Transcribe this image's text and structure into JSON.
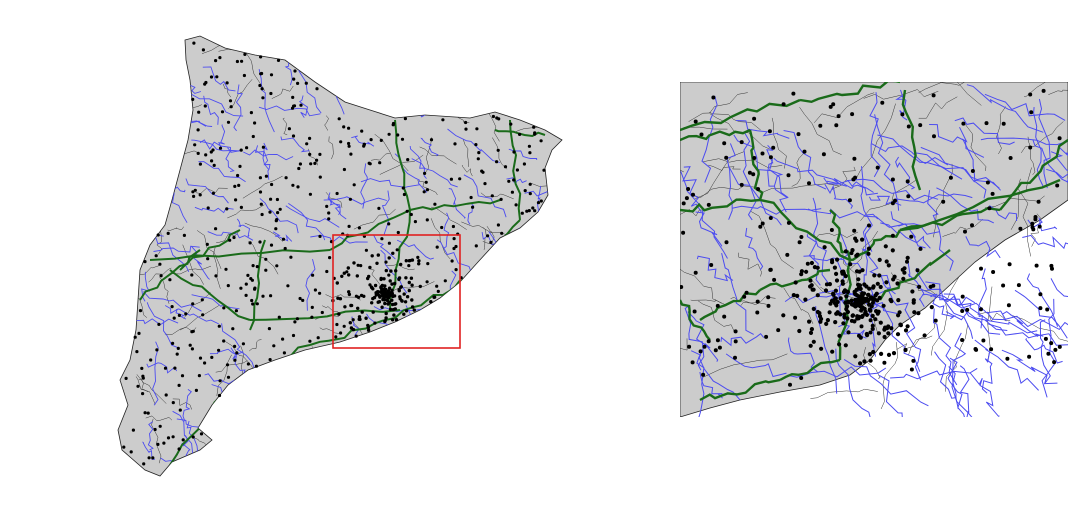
{
  "figure": {
    "panels": [
      {
        "id": "overview",
        "role": "full region map"
      },
      {
        "id": "inset",
        "role": "zoomed detail of highlighted area"
      }
    ],
    "colors": {
      "background": "#ffffff",
      "land": "#cccccc",
      "boundaries": "#000000",
      "rivers": "#4c4cf0",
      "roads": "#1a6b1a",
      "points": "#000000",
      "highlight_box": "#e02020"
    },
    "legend": null,
    "title": ""
  }
}
